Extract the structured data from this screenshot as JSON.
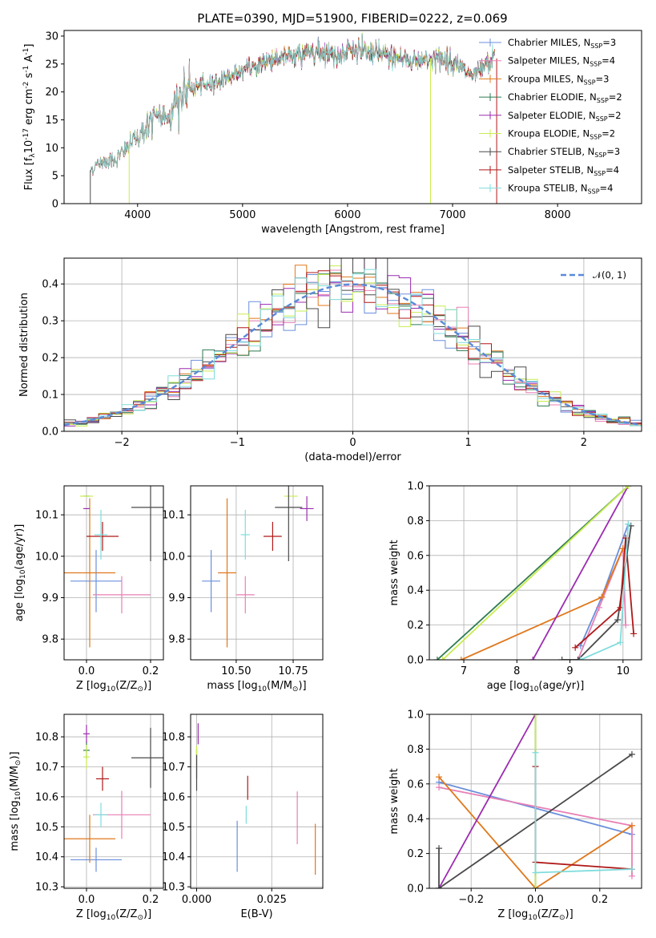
{
  "figure": {
    "title": "PLATE=0390, MJD=51900, FIBERID=0222, z=0.069"
  },
  "models": [
    {
      "label": "Chabrier MILES, N$_{SSP}$=3",
      "color": "#6a8fdc"
    },
    {
      "label": "Salpeter MILES, N$_{SSP}$=4",
      "color": "#e87fb5"
    },
    {
      "label": "Kroupa MILES, N$_{SSP}$=3",
      "color": "#e0781c"
    },
    {
      "label": "Chabrier ELODIE, N$_{SSP}$=2",
      "color": "#2e7a50"
    },
    {
      "label": "Salpeter ELODIE, N$_{SSP}$=2",
      "color": "#9b2cb0"
    },
    {
      "label": "Kroupa ELODIE, N$_{SSP}$=2",
      "color": "#c8ec50"
    },
    {
      "label": "Chabrier STELIB, N$_{SSP}$=3",
      "color": "#4a4a4a"
    },
    {
      "label": "Salpeter STELIB, N$_{SSP}$=4",
      "color": "#b01818"
    },
    {
      "label": "Kroupa STELIB, N$_{SSP}$=4",
      "color": "#80dcdc"
    }
  ],
  "chart_data": [
    {
      "id": "spectrum",
      "type": "line",
      "xlabel": "wavelength [Angstrom, rest frame]",
      "ylabel": "Flux [f$_λ$10$^{-17}$ erg cm$^{-2}$ s$^{-1}$ A$^{-1}$]",
      "xlim": [
        3300,
        8800
      ],
      "ylim": [
        0,
        31
      ],
      "xticks": [
        4000,
        5000,
        6000,
        7000,
        8000
      ],
      "yticks": [
        0,
        5,
        10,
        15,
        20,
        25,
        30
      ],
      "legend": "top-right",
      "grid": false,
      "data_wavelength_range": [
        3550,
        7400
      ],
      "continuum": [
        [
          3550,
          6
        ],
        [
          3650,
          7.5
        ],
        [
          3800,
          8
        ],
        [
          3950,
          11
        ],
        [
          4050,
          13
        ],
        [
          4150,
          15
        ],
        [
          4300,
          16
        ],
        [
          4400,
          19
        ],
        [
          4500,
          20.5
        ],
        [
          4700,
          21.5
        ],
        [
          4900,
          23
        ],
        [
          5100,
          24.5
        ],
        [
          5300,
          26
        ],
        [
          5500,
          26.5
        ],
        [
          5700,
          27.5
        ],
        [
          5900,
          26.5
        ],
        [
          6000,
          27.5
        ],
        [
          6200,
          27
        ],
        [
          6400,
          26.5
        ],
        [
          6600,
          25.5
        ],
        [
          6800,
          26
        ],
        [
          7000,
          25.5
        ],
        [
          7200,
          22.5
        ],
        [
          7300,
          24.5
        ],
        [
          7400,
          26
        ]
      ]
    },
    {
      "id": "residuals",
      "type": "line",
      "xlabel": "(data-model)/error",
      "ylabel": "Normed distribution",
      "xlim": [
        -2.5,
        2.5
      ],
      "ylim": [
        0,
        0.47
      ],
      "xticks": [
        -2,
        -1,
        0,
        1,
        2
      ],
      "yticks": [
        0.0,
        0.1,
        0.2,
        0.3,
        0.4
      ],
      "grid": true,
      "legend": "top-right",
      "series_label": "$\\mathcal{N}(0,1)$",
      "normal": {
        "mean": 0,
        "sigma": 1
      },
      "bin_width": 0.1,
      "histograms": "step histograms of normalised residuals, one per model"
    },
    {
      "id": "age-vs-Z",
      "type": "scatter",
      "xlabel": "Z [log$_{10}$(Z/Z$_\\odot$)]",
      "ylabel": "age  [log$_{10}$(age/yr)]",
      "xlim": [
        -0.07,
        0.24
      ],
      "ylim": [
        9.75,
        10.17
      ],
      "xticks": [
        0.0,
        0.2
      ],
      "yticks": [
        9.8,
        9.9,
        10.0,
        10.1
      ],
      "grid": true,
      "points": [
        {
          "x": 0.03,
          "y": 9.94,
          "xerr": 0.08,
          "yerr": 0.075
        },
        {
          "x": 0.11,
          "y": 9.907,
          "xerr": 0.09,
          "yerr": 0.045
        },
        {
          "x": 0.01,
          "y": 9.96,
          "xerr": 0.08,
          "yerr": 0.18
        },
        {
          "x": 0.0,
          "y": 10.145,
          "xerr": 0.01,
          "yerr": 0.0
        },
        {
          "x": 0.0,
          "y": 10.115,
          "xerr": 0.01,
          "yerr": 0.0
        },
        {
          "x": 0.0,
          "y": 10.145,
          "xerr": 0.02,
          "yerr": 0.0
        },
        {
          "x": 0.2,
          "y": 10.118,
          "xerr": 0.06,
          "yerr": 0.13
        },
        {
          "x": 0.05,
          "y": 10.048,
          "xerr": 0.05,
          "yerr": 0.035
        },
        {
          "x": 0.045,
          "y": 10.052,
          "xerr": 0.02,
          "yerr": 0.06
        }
      ]
    },
    {
      "id": "age-vs-mass",
      "type": "scatter",
      "xlabel": "mass [log$_{10}$(M/M$_\\odot$)]",
      "ylabel": "",
      "xlim": [
        10.3,
        10.88
      ],
      "ylim": [
        9.75,
        10.17
      ],
      "xticks": [
        10.5,
        10.75
      ],
      "yticks": [
        9.8,
        9.9,
        10.0,
        10.1
      ],
      "grid": true,
      "points": [
        {
          "x": 10.39,
          "y": 9.94,
          "xerr": 0.04,
          "yerr": 0.075
        },
        {
          "x": 10.54,
          "y": 9.907,
          "xerr": 0.04,
          "yerr": 0.045
        },
        {
          "x": 10.46,
          "y": 9.96,
          "xerr": 0.04,
          "yerr": 0.18
        },
        {
          "x": 10.7,
          "y": 10.145,
          "xerr": 0.0,
          "yerr": 0.0
        },
        {
          "x": 10.81,
          "y": 10.115,
          "xerr": 0.03,
          "yerr": 0.03
        },
        {
          "x": 10.74,
          "y": 10.145,
          "xerr": 0.03,
          "yerr": 0.0
        },
        {
          "x": 10.73,
          "y": 10.118,
          "xerr": 0.06,
          "yerr": 0.13
        },
        {
          "x": 10.66,
          "y": 10.048,
          "xerr": 0.04,
          "yerr": 0.035
        },
        {
          "x": 10.54,
          "y": 10.052,
          "xerr": 0.02,
          "yerr": 0.06
        }
      ]
    },
    {
      "id": "weights-vs-age",
      "type": "line",
      "xlabel": "age  [log$_{10}$(age/yr)]",
      "ylabel": "mass weight",
      "xlim": [
        6.35,
        10.35
      ],
      "ylim": [
        0,
        1.0
      ],
      "xticks": [
        7,
        8,
        9,
        10
      ],
      "yticks": [
        0.0,
        0.2,
        0.4,
        0.6,
        0.8,
        1.0
      ],
      "grid": true,
      "series": [
        {
          "points": [
            [
              9.2,
              0.08
            ],
            [
              9.6,
              0.36
            ],
            [
              10.1,
              0.78
            ]
          ]
        },
        {
          "points": [
            [
              9.15,
              0.0
            ],
            [
              9.55,
              0.3
            ],
            [
              10.0,
              0.64
            ],
            [
              10.05,
              0.2
            ]
          ]
        },
        {
          "points": [
            [
              6.95,
              0.0
            ],
            [
              9.6,
              0.36
            ],
            [
              10.0,
              0.64
            ]
          ]
        },
        {
          "points": [
            [
              6.5,
              0.0
            ],
            [
              10.1,
              1.0
            ]
          ]
        },
        {
          "points": [
            [
              8.3,
              0.0
            ],
            [
              10.1,
              1.0
            ]
          ]
        },
        {
          "points": [
            [
              6.6,
              0.0
            ],
            [
              10.1,
              1.0
            ]
          ]
        },
        {
          "points": [
            [
              8.85,
              0.0
            ],
            [
              9.15,
              0.0
            ],
            [
              9.9,
              0.23
            ],
            [
              10.15,
              0.77
            ]
          ]
        },
        {
          "points": [
            [
              9.1,
              0.07
            ],
            [
              9.95,
              0.3
            ],
            [
              10.05,
              0.7
            ],
            [
              10.2,
              0.15
            ]
          ]
        },
        {
          "points": [
            [
              9.2,
              0.0
            ],
            [
              9.95,
              0.1
            ],
            [
              10.1,
              0.78
            ]
          ]
        }
      ]
    },
    {
      "id": "mass-vs-Z",
      "type": "scatter",
      "xlabel": "Z [log$_{10}$(Z/Z$_\\odot$)]",
      "ylabel": "mass [log$_{10}$(M/M$_\\odot$)]",
      "xlim": [
        -0.07,
        0.24
      ],
      "ylim": [
        10.295,
        10.875
      ],
      "xticks": [
        0.0,
        0.2
      ],
      "yticks": [
        10.3,
        10.4,
        10.5,
        10.6,
        10.7,
        10.8
      ],
      "grid": true,
      "points": [
        {
          "x": 0.03,
          "y": 10.39,
          "xerr": 0.08,
          "yerr": 0.04
        },
        {
          "x": 0.11,
          "y": 10.54,
          "xerr": 0.09,
          "yerr": 0.08
        },
        {
          "x": 0.01,
          "y": 10.46,
          "xerr": 0.08,
          "yerr": 0.08
        },
        {
          "x": 0.0,
          "y": 10.755,
          "xerr": 0.01,
          "yerr": 0.03
        },
        {
          "x": 0.0,
          "y": 10.81,
          "xerr": 0.01,
          "yerr": 0.03
        },
        {
          "x": 0.0,
          "y": 10.733,
          "xerr": 0.01,
          "yerr": 0.04
        },
        {
          "x": 0.2,
          "y": 10.73,
          "xerr": 0.06,
          "yerr": 0.1
        },
        {
          "x": 0.05,
          "y": 10.66,
          "xerr": 0.02,
          "yerr": 0.04
        },
        {
          "x": 0.045,
          "y": 10.54,
          "xerr": 0.02,
          "yerr": 0.04
        }
      ]
    },
    {
      "id": "mass-vs-ebv",
      "type": "scatter",
      "xlabel": "E(B-V)",
      "ylabel": "",
      "xlim": [
        -0.002,
        0.042
      ],
      "ylim": [
        10.295,
        10.875
      ],
      "xticks": [
        0.0,
        0.025
      ],
      "yticks": [
        10.3,
        10.4,
        10.5,
        10.6,
        10.7,
        10.8
      ],
      "grid": true,
      "points": [
        {
          "x": 0.0135,
          "y": 10.435,
          "xerr": 0.0,
          "yerr": 0.085
        },
        {
          "x": 0.0335,
          "y": 10.53,
          "xerr": 0.0,
          "yerr": 0.088
        },
        {
          "x": 0.0395,
          "y": 10.425,
          "xerr": 0.0,
          "yerr": 0.085
        },
        {
          "x": 0.0,
          "y": 10.71,
          "xerr": 0.0,
          "yerr": 0.05
        },
        {
          "x": 0.0005,
          "y": 10.81,
          "xerr": 0.0,
          "yerr": 0.035
        },
        {
          "x": 0.0,
          "y": 10.73,
          "xerr": 0.0,
          "yerr": 0.04
        },
        {
          "x": 0.0,
          "y": 10.68,
          "xerr": 0.0,
          "yerr": 0.06
        },
        {
          "x": 0.017,
          "y": 10.63,
          "xerr": 0.0,
          "yerr": 0.04
        },
        {
          "x": 0.0165,
          "y": 10.54,
          "xerr": 0.0,
          "yerr": 0.03
        }
      ]
    },
    {
      "id": "weights-vs-Z",
      "type": "line",
      "xlabel": "Z [log$_{10}$(Z/Z$_\\odot$)]",
      "ylabel": "mass weight",
      "xlim": [
        -0.33,
        0.33
      ],
      "ylim": [
        0,
        1.0
      ],
      "xticks": [
        -0.2,
        0.0,
        0.2
      ],
      "yticks": [
        0.0,
        0.2,
        0.4,
        0.6,
        0.8,
        1.0
      ],
      "grid": true,
      "series": [
        {
          "points": [
            [
              -0.3,
              0.61
            ],
            [
              0.3,
              0.31
            ]
          ]
        },
        {
          "points": [
            [
              -0.3,
              0.58
            ],
            [
              0.3,
              0.36
            ],
            [
              0.3,
              0.07
            ]
          ]
        },
        {
          "points": [
            [
              -0.3,
              0.64
            ],
            [
              0.0,
              0.0
            ],
            [
              0.3,
              0.36
            ]
          ]
        },
        {
          "points": [
            [
              0.0,
              0.0
            ],
            [
              0.0,
              1.0
            ]
          ]
        },
        {
          "points": [
            [
              -0.3,
              0.0
            ],
            [
              0.0,
              1.0
            ]
          ]
        },
        {
          "points": [
            [
              0.0,
              0.0
            ],
            [
              0.0,
              1.0
            ]
          ]
        },
        {
          "points": [
            [
              -0.3,
              0.23
            ],
            [
              -0.3,
              0.0
            ],
            [
              0.3,
              0.77
            ]
          ]
        },
        {
          "points": [
            [
              0.0,
              0.7
            ],
            [
              0.0,
              0.15
            ],
            [
              0.3,
              0.11
            ]
          ]
        },
        {
          "points": [
            [
              0.0,
              0.78
            ],
            [
              0.0,
              0.09
            ],
            [
              0.3,
              0.11
            ]
          ]
        }
      ]
    }
  ]
}
